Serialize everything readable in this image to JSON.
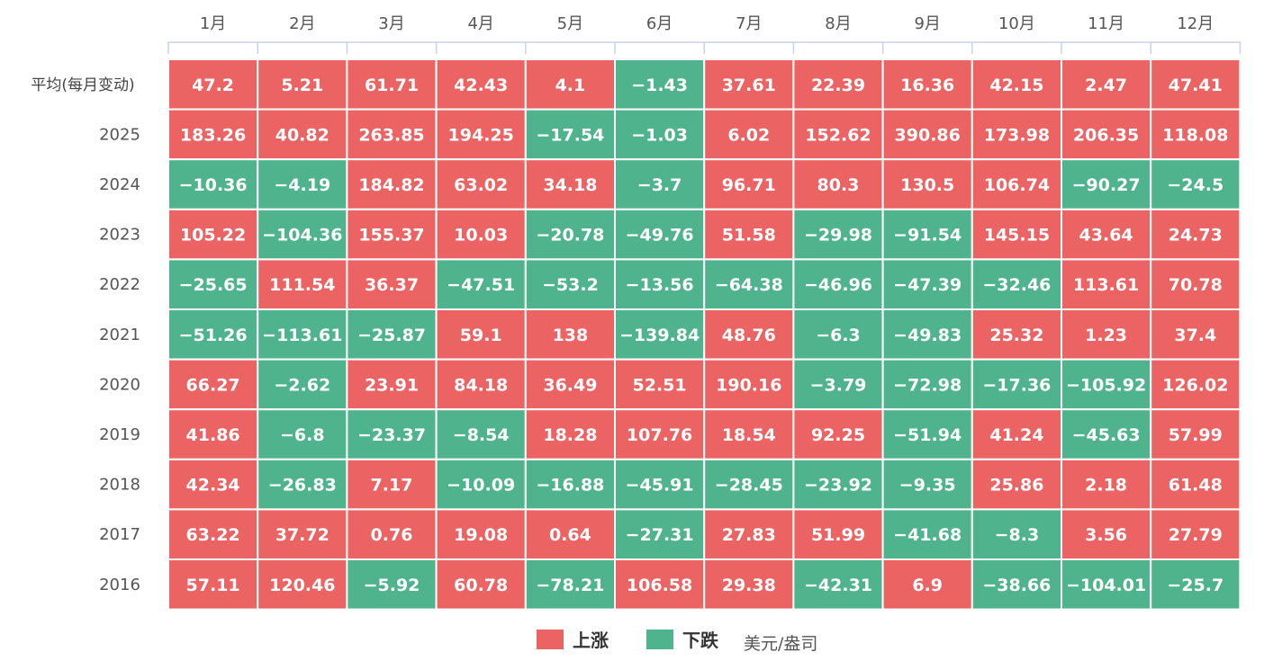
{
  "chart_data": {
    "type": "heatmap",
    "x_categories": [
      "1月",
      "2月",
      "3月",
      "4月",
      "5月",
      "6月",
      "7月",
      "8月",
      "9月",
      "10月",
      "11月",
      "12月"
    ],
    "rows": [
      {
        "label": "平均(每月变动)",
        "values": [
          47.2,
          5.21,
          61.71,
          42.43,
          4.1,
          -1.43,
          37.61,
          22.39,
          16.36,
          42.15,
          2.47,
          47.41
        ]
      },
      {
        "label": "2025",
        "values": [
          183.26,
          40.82,
          263.85,
          194.25,
          -17.54,
          -1.03,
          6.02,
          152.62,
          390.86,
          173.98,
          206.35,
          118.08
        ]
      },
      {
        "label": "2024",
        "values": [
          -10.36,
          -4.19,
          184.82,
          63.02,
          34.18,
          -3.7,
          96.71,
          80.3,
          130.5,
          106.74,
          -90.27,
          -24.5
        ]
      },
      {
        "label": "2023",
        "values": [
          105.22,
          -104.36,
          155.37,
          10.03,
          -20.78,
          -49.76,
          51.58,
          -29.98,
          -91.54,
          145.15,
          43.64,
          24.73
        ]
      },
      {
        "label": "2022",
        "values": [
          -25.65,
          111.54,
          36.37,
          -47.51,
          -53.2,
          -13.56,
          -64.38,
          -46.96,
          -47.39,
          -32.46,
          113.61,
          70.78
        ]
      },
      {
        "label": "2021",
        "values": [
          -51.26,
          -113.61,
          -25.87,
          59.1,
          138,
          -139.84,
          48.76,
          -6.3,
          -49.83,
          25.32,
          1.23,
          37.4
        ]
      },
      {
        "label": "2020",
        "values": [
          66.27,
          -2.62,
          23.91,
          84.18,
          36.49,
          52.51,
          190.16,
          -3.79,
          -72.98,
          -17.36,
          -105.92,
          126.02
        ]
      },
      {
        "label": "2019",
        "values": [
          41.86,
          -6.8,
          -23.37,
          -8.54,
          18.28,
          107.76,
          18.54,
          92.25,
          -51.94,
          41.24,
          -45.63,
          57.99
        ]
      },
      {
        "label": "2018",
        "values": [
          42.34,
          -26.83,
          7.17,
          -10.09,
          -16.88,
          -45.91,
          -28.45,
          -23.92,
          -9.35,
          25.86,
          2.18,
          61.48
        ]
      },
      {
        "label": "2017",
        "values": [
          63.22,
          37.72,
          0.76,
          19.08,
          0.64,
          -27.31,
          27.83,
          51.99,
          -41.68,
          -8.3,
          3.56,
          27.79
        ]
      },
      {
        "label": "2016",
        "values": [
          57.11,
          120.46,
          -5.92,
          60.78,
          -78.21,
          106.58,
          29.38,
          -42.31,
          6.9,
          -38.66,
          -104.01,
          -25.7
        ]
      }
    ],
    "legend": [
      {
        "label": "上涨",
        "color": "#ec6363"
      },
      {
        "label": "下跌",
        "color": "#4fb48e"
      }
    ],
    "unit": "美元/盎司",
    "legend_position": "bottom-center"
  },
  "colors": {
    "up": "#ec6363",
    "down": "#4fb48e",
    "axis": "#c9d3e6",
    "cell_border": "#ffffff"
  }
}
